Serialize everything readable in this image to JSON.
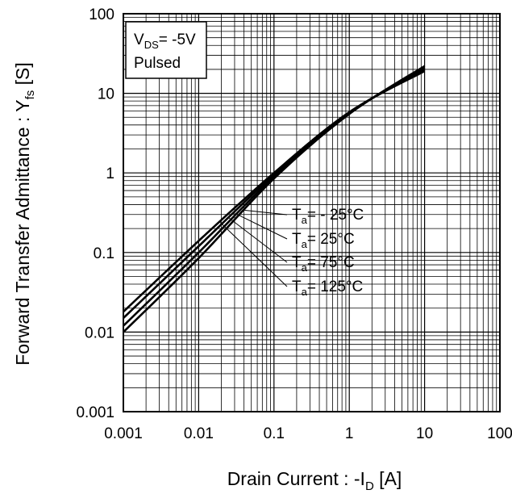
{
  "chart_data": {
    "type": "line",
    "title": "",
    "xlabel": {
      "main": "Drain Current : -I",
      "sub": "D",
      "unit": " [A]"
    },
    "ylabel": {
      "main": "Forward Transfer Admittance : Y",
      "sub": "fs",
      "unit": " [S]"
    },
    "xscale": "log",
    "yscale": "log",
    "xlim": [
      0.001,
      100
    ],
    "ylim": [
      0.001,
      100
    ],
    "grid": true,
    "x_ticks": [
      "0.001",
      "0.01",
      "0.1",
      "1",
      "10",
      "100"
    ],
    "y_ticks": [
      "0.001",
      "0.01",
      "0.1",
      "1",
      "10",
      "100"
    ],
    "conditions": {
      "line1_main": "V",
      "line1_sub": "DS",
      "line1_rest": "= -5V",
      "line2": "Pulsed"
    },
    "series": [
      {
        "name": "Ta= - 25°C",
        "label_main": "T",
        "label_sub": "a",
        "label_rest": "= - 25°C",
        "x": [
          0.001,
          0.01,
          0.1,
          1,
          10
        ],
        "y": [
          0.01,
          0.085,
          0.85,
          5.5,
          22
        ]
      },
      {
        "name": "Ta= 25°C",
        "label_main": "T",
        "label_sub": "a",
        "label_rest": "= 25°C",
        "x": [
          0.001,
          0.01,
          0.1,
          1,
          10
        ],
        "y": [
          0.012,
          0.1,
          0.9,
          5.6,
          21
        ]
      },
      {
        "name": "Ta= 75°C",
        "label_main": "T",
        "label_sub": "a",
        "label_rest": "= 75°C",
        "x": [
          0.001,
          0.01,
          0.1,
          1,
          10
        ],
        "y": [
          0.015,
          0.12,
          0.95,
          5.7,
          20
        ]
      },
      {
        "name": "Ta= 125°C",
        "label_main": "T",
        "label_sub": "a",
        "label_rest": "= 125°C",
        "x": [
          0.001,
          0.01,
          0.1,
          1,
          10
        ],
        "y": [
          0.018,
          0.14,
          1.0,
          5.8,
          19
        ]
      }
    ]
  }
}
